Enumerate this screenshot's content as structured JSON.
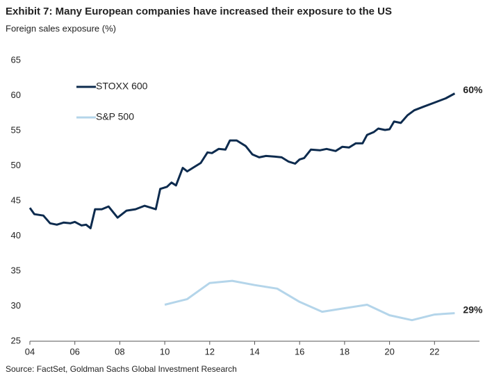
{
  "chart_data": {
    "type": "line",
    "title": "Exhibit 7: Many European companies have increased their exposure to the US",
    "subtitle": "Foreign sales exposure (%)",
    "source": "Source: FactSet, Goldman Sachs Global Investment Research",
    "xlim": [
      2004,
      2024
    ],
    "xticks": [
      {
        "value": 2004,
        "label": "04"
      },
      {
        "value": 2006,
        "label": "06"
      },
      {
        "value": 2008,
        "label": "08"
      },
      {
        "value": 2010,
        "label": "10"
      },
      {
        "value": 2012,
        "label": "12"
      },
      {
        "value": 2014,
        "label": "14"
      },
      {
        "value": 2016,
        "label": "16"
      },
      {
        "value": 2018,
        "label": "18"
      },
      {
        "value": 2020,
        "label": "20"
      },
      {
        "value": 2022,
        "label": "22"
      }
    ],
    "ylim": [
      25,
      65
    ],
    "yticks": [
      25,
      30,
      35,
      40,
      45,
      50,
      55,
      60,
      65
    ],
    "grid": false,
    "legend": "upper left",
    "series": [
      {
        "name": "STOXX 600",
        "color": "#0d2b4e",
        "end_label": "60%",
        "x": [
          2004.0,
          2004.2,
          2004.6,
          2004.9,
          2005.2,
          2005.5,
          2005.8,
          2006.0,
          2006.3,
          2006.5,
          2006.7,
          2006.9,
          2007.2,
          2007.5,
          2007.9,
          2008.3,
          2008.7,
          2009.1,
          2009.6,
          2009.8,
          2010.1,
          2010.3,
          2010.5,
          2010.8,
          2011.0,
          2011.3,
          2011.6,
          2011.9,
          2012.1,
          2012.4,
          2012.7,
          2012.9,
          2013.2,
          2013.6,
          2013.9,
          2014.2,
          2014.5,
          2014.9,
          2015.2,
          2015.5,
          2015.8,
          2016.0,
          2016.2,
          2016.5,
          2016.9,
          2017.2,
          2017.6,
          2017.9,
          2018.2,
          2018.5,
          2018.8,
          2019.0,
          2019.3,
          2019.5,
          2019.8,
          2020.0,
          2020.2,
          2020.5,
          2020.8,
          2021.1,
          2021.5,
          2022.0,
          2022.5,
          2022.9
        ],
        "values": [
          44.0,
          43.1,
          42.9,
          41.8,
          41.6,
          41.9,
          41.8,
          42.0,
          41.5,
          41.6,
          41.1,
          43.8,
          43.8,
          44.2,
          42.6,
          43.6,
          43.8,
          44.3,
          43.8,
          46.7,
          47.0,
          47.6,
          47.2,
          49.7,
          49.2,
          49.8,
          50.4,
          51.9,
          51.8,
          52.4,
          52.3,
          53.6,
          53.6,
          52.8,
          51.6,
          51.2,
          51.4,
          51.3,
          51.2,
          50.6,
          50.3,
          50.9,
          51.1,
          52.3,
          52.2,
          52.4,
          52.1,
          52.7,
          52.6,
          53.2,
          53.2,
          54.4,
          54.8,
          55.3,
          55.1,
          55.2,
          56.3,
          56.1,
          57.2,
          57.9,
          58.4,
          59.0,
          59.6,
          60.3
        ]
      },
      {
        "name": "S&P 500",
        "color": "#b4d5ea",
        "end_label": "29%",
        "x": [
          2010,
          2011,
          2012,
          2013,
          2014,
          2015,
          2016,
          2017,
          2018,
          2019,
          2020,
          2021,
          2022,
          2022.9
        ],
        "values": [
          30.2,
          31.0,
          33.3,
          33.6,
          33.0,
          32.5,
          30.6,
          29.2,
          29.7,
          30.2,
          28.7,
          28.0,
          28.8,
          29.0
        ]
      }
    ]
  }
}
